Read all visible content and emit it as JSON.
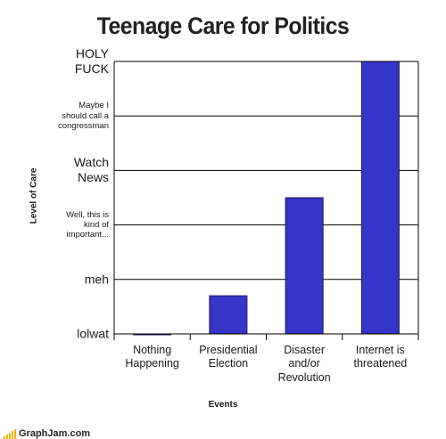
{
  "chart_data": {
    "type": "bar",
    "title": "Teenage Care for Politics",
    "xlabel": "Events",
    "ylabel": "Level of Care",
    "categories": [
      "Nothing\nHappening",
      "Presidential\nElection",
      "Disaster\nand/or\nRevolution",
      "Internet is\nthreatened"
    ],
    "values": [
      0,
      0.7,
      2.5,
      5
    ],
    "y_tick_labels": [
      "lolwat",
      "meh",
      "Well, this is\nkind of\nimportant...",
      "Watch\nNews",
      "Maybe I\nshould call a\ncongressman",
      "HOLY\nFUCK"
    ],
    "ylim": [
      0,
      5
    ],
    "grid": true,
    "bar_color": "#3535c8",
    "bar_edge_color": "#1a1a5e"
  },
  "footer": {
    "site": "GraphJam.com",
    "logo_color": "#f2b400"
  }
}
